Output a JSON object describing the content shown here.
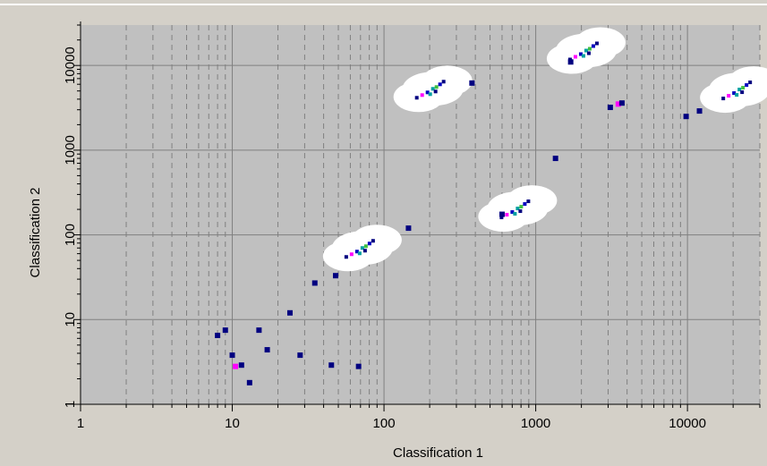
{
  "chart_data": {
    "type": "scatter",
    "xscale": "log",
    "yscale": "log",
    "xlim": [
      1,
      30000
    ],
    "ylim": [
      1,
      30000
    ],
    "xlabel": "Classification 1",
    "ylabel": "Classification 2",
    "xticks": [
      "1",
      "10",
      "100",
      "1000",
      "10000"
    ],
    "yticks": [
      "1",
      "10",
      "100",
      "1000",
      "10000"
    ],
    "grid": true,
    "colors": {
      "background": "#d4d0c8",
      "plot_area": "#c0c0c0",
      "grid_major": "#808080",
      "grid_minor": "#808080",
      "cluster_halo": "#ffffff",
      "point_navy": "#000080",
      "point_blue": "#0000c0",
      "point_teal": "#00a0a0",
      "point_green": "#40c040",
      "point_magenta": "#ff00ff"
    },
    "clusters": [
      {
        "x": 72,
        "y": 70,
        "spread": 0.13
      },
      {
        "x": 210,
        "y": 5300,
        "spread": 0.11
      },
      {
        "x": 760,
        "y": 205,
        "spread": 0.12
      },
      {
        "x": 2150,
        "y": 15000,
        "spread": 0.11
      },
      {
        "x": 22000,
        "y": 5200,
        "spread": 0.11
      }
    ],
    "points": [
      {
        "x": 8,
        "y": 6.5,
        "color": "point_navy"
      },
      {
        "x": 9,
        "y": 7.5,
        "color": "point_navy"
      },
      {
        "x": 10,
        "y": 3.8,
        "color": "point_navy"
      },
      {
        "x": 10.5,
        "y": 2.8,
        "color": "point_magenta"
      },
      {
        "x": 11.5,
        "y": 2.9,
        "color": "point_navy"
      },
      {
        "x": 13,
        "y": 1.8,
        "color": "point_navy"
      },
      {
        "x": 15,
        "y": 7.5,
        "color": "point_navy"
      },
      {
        "x": 17,
        "y": 4.4,
        "color": "point_navy"
      },
      {
        "x": 28,
        "y": 3.8,
        "color": "point_navy"
      },
      {
        "x": 45,
        "y": 2.9,
        "color": "point_navy"
      },
      {
        "x": 68,
        "y": 2.8,
        "color": "point_navy"
      },
      {
        "x": 24,
        "y": 12,
        "color": "point_navy"
      },
      {
        "x": 35,
        "y": 27,
        "color": "point_navy"
      },
      {
        "x": 48,
        "y": 33,
        "color": "point_navy"
      },
      {
        "x": 145,
        "y": 120,
        "color": "point_navy"
      },
      {
        "x": 380,
        "y": 6200,
        "color": "point_navy"
      },
      {
        "x": 1350,
        "y": 800,
        "color": "point_navy"
      },
      {
        "x": 3100,
        "y": 3200,
        "color": "point_navy"
      },
      {
        "x": 3500,
        "y": 3500,
        "color": "point_magenta"
      },
      {
        "x": 3700,
        "y": 3600,
        "color": "point_navy"
      },
      {
        "x": 9800,
        "y": 2500,
        "color": "point_navy"
      },
      {
        "x": 12000,
        "y": 2900,
        "color": "point_navy"
      },
      {
        "x": 1700,
        "y": 11000,
        "color": "point_navy"
      },
      {
        "x": 600,
        "y": 175,
        "color": "point_navy"
      }
    ]
  }
}
